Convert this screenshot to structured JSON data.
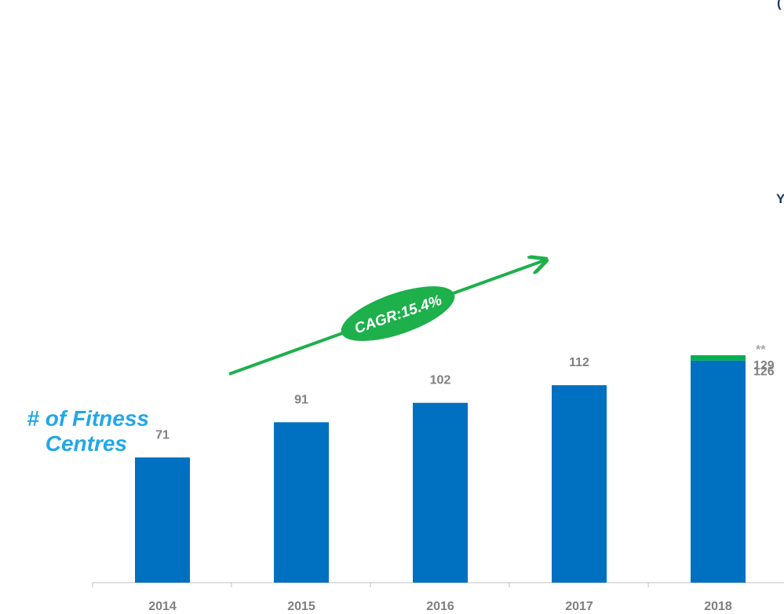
{
  "chart_data": {
    "type": "bar",
    "categories": [
      "2014",
      "2015",
      "2016",
      "2017",
      "2018"
    ],
    "values": [
      71,
      91,
      102,
      112,
      126
    ],
    "extra": {
      "category": "2018",
      "top_value": 129,
      "marker": "**"
    },
    "ylabel_line1": "# of Fitness",
    "ylabel_line2": "Centres",
    "cagr_label": "CAGR:15.4%",
    "ylim": [
      0,
      129
    ],
    "grid": false
  },
  "edge_text": {
    "top_right": "(",
    "right_mid": "Y"
  },
  "colors": {
    "bar": "#0070c0",
    "extra": "#00b050",
    "arrow": "#1db04b",
    "label": "#808080",
    "ylabel": "#22a7e8",
    "edge": "#1f3864"
  }
}
